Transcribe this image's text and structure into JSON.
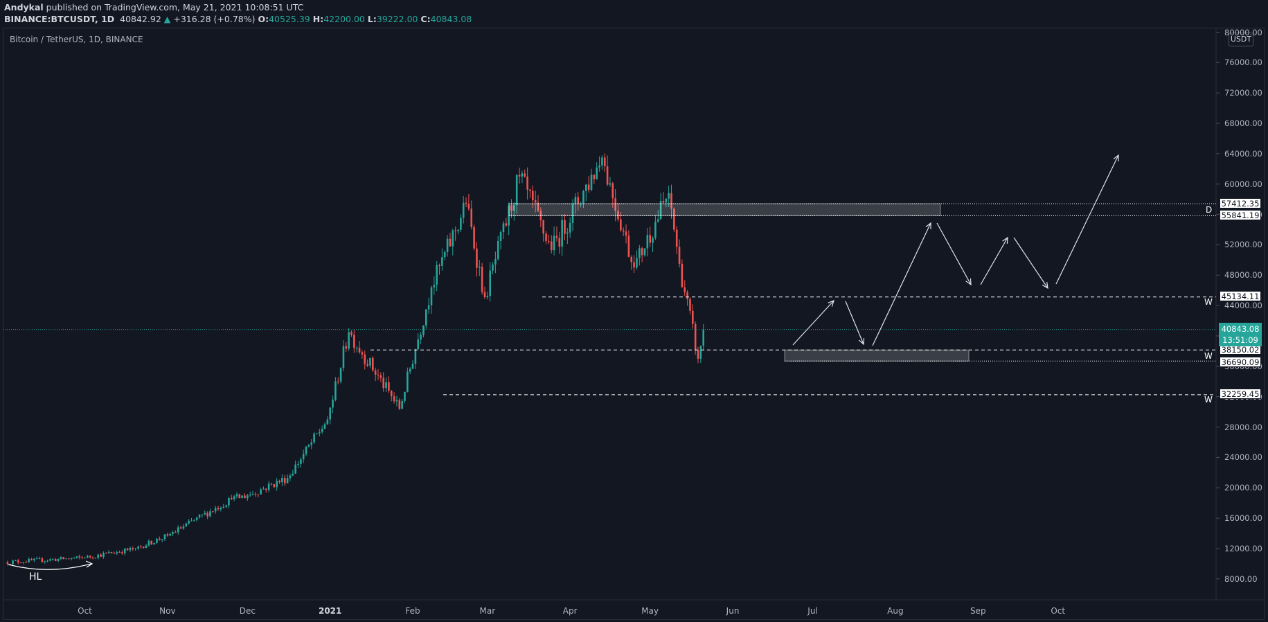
{
  "header": {
    "author": "Andykal",
    "published": " published on TradingView.com, May 21, 2021 10:08:51 UTC",
    "symbol": "BINANCE:BTCUSDT, 1D",
    "last": "40842.92",
    "change_arrow": "▲",
    "change": "+316.28 (+0.78%)",
    "o_label": "O:",
    "o": "40525.39",
    "h_label": "H:",
    "h": "42200.00",
    "l_label": "L:",
    "l": "39222.00",
    "c_label": "C:",
    "c": "40843.08"
  },
  "chart_title": "Bitcoin / TetherUS, 1D, BINANCE",
  "axis_currency": "USDT",
  "current_price": {
    "price": "40843.08",
    "countdown": "13:51:09"
  },
  "levels": [
    {
      "value": "57412.35"
    },
    {
      "value": "55841.19"
    },
    {
      "value": "45134.11"
    },
    {
      "value": "38150.02"
    },
    {
      "value": "36690.09"
    },
    {
      "value": "32259.45"
    }
  ],
  "zone_labels": {
    "d": "D",
    "w1": "W",
    "w2": "W",
    "w3": "W"
  },
  "hl_label": "HL",
  "colors": {
    "up": "#26a69a",
    "down": "#ef5350",
    "background": "#131722",
    "accent": "#26a69a"
  },
  "chart_data": {
    "type": "candlestick",
    "title": "Bitcoin / TetherUS, 1D, BINANCE",
    "ylim": [
      6000,
      80000
    ],
    "y_ticks": [
      "80000.00",
      "76000.00",
      "72000.00",
      "68000.00",
      "64000.00",
      "60000.00",
      "56000.00",
      "52000.00",
      "48000.00",
      "44000.00",
      "40000.00",
      "36000.00",
      "32000.00",
      "28000.00",
      "24000.00",
      "20000.00",
      "16000.00",
      "12000.00",
      "8000.00"
    ],
    "x_ticks": [
      "Oct",
      "Nov",
      "Dec",
      "2021",
      "Feb",
      "Mar",
      "Apr",
      "May",
      "Jun",
      "Jul",
      "Aug",
      "Sep",
      "Oct"
    ],
    "date_range": [
      "2020-09-01",
      "2021-05-21"
    ],
    "key_prices": [
      {
        "date": "2020-09-01",
        "close": 10200
      },
      {
        "date": "2020-10-01",
        "close": 10800
      },
      {
        "date": "2020-10-20",
        "close": 12000
      },
      {
        "date": "2020-11-01",
        "close": 13700
      },
      {
        "date": "2020-11-25",
        "close": 18500
      },
      {
        "date": "2020-12-01",
        "close": 19000
      },
      {
        "date": "2020-12-16",
        "close": 21300
      },
      {
        "date": "2020-12-31",
        "close": 29000
      },
      {
        "date": "2021-01-08",
        "close": 40500
      },
      {
        "date": "2021-01-27",
        "close": 30400
      },
      {
        "date": "2021-02-08",
        "close": 46400
      },
      {
        "date": "2021-02-21",
        "close": 57400
      },
      {
        "date": "2021-02-28",
        "close": 45100
      },
      {
        "date": "2021-03-13",
        "close": 61000
      },
      {
        "date": "2021-03-25",
        "close": 51300
      },
      {
        "date": "2021-04-13",
        "close": 63500
      },
      {
        "date": "2021-04-25",
        "close": 49000
      },
      {
        "date": "2021-05-08",
        "close": 58800
      },
      {
        "date": "2021-05-12",
        "close": 49500
      },
      {
        "date": "2021-05-19",
        "close": 37000
      },
      {
        "date": "2021-05-21",
        "close": 40843
      }
    ]
  }
}
